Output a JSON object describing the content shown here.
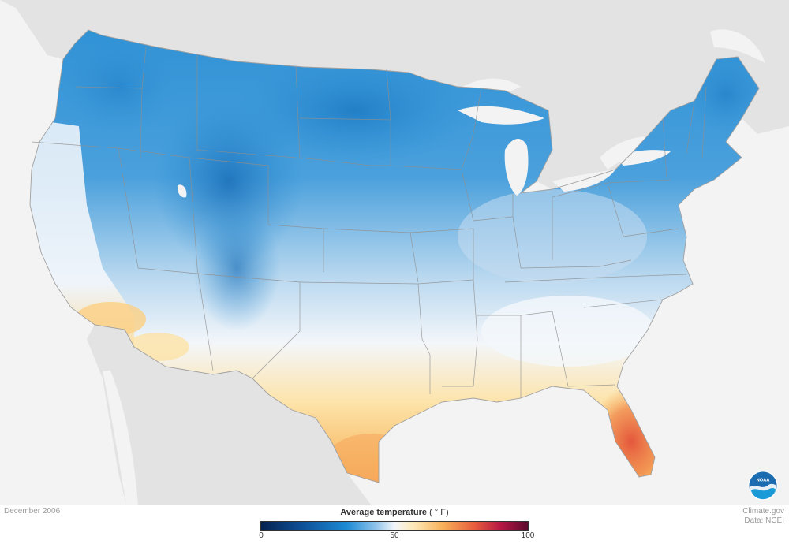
{
  "map": {
    "date": "December 2006",
    "legend": {
      "title": "Average temperature",
      "unit": "( ° F)",
      "ticks": [
        "0",
        "50",
        "100"
      ],
      "scale_min": 0,
      "scale_max": 100,
      "colors": [
        "#06214f",
        "#0e4f96",
        "#1c8ad4",
        "#8fc4ea",
        "#f2f6fb",
        "#fde9b9",
        "#f8b15a",
        "#e75d3d",
        "#b51744",
        "#5b0a2e"
      ]
    },
    "credits": {
      "line1": "Climate.gov",
      "line2": "Data: NCEI"
    },
    "logo_text": "NOAA"
  },
  "colors": {
    "land_background": "#e3e3e3",
    "water": "#f3f3f3",
    "state_border": "#8f8f8f"
  }
}
